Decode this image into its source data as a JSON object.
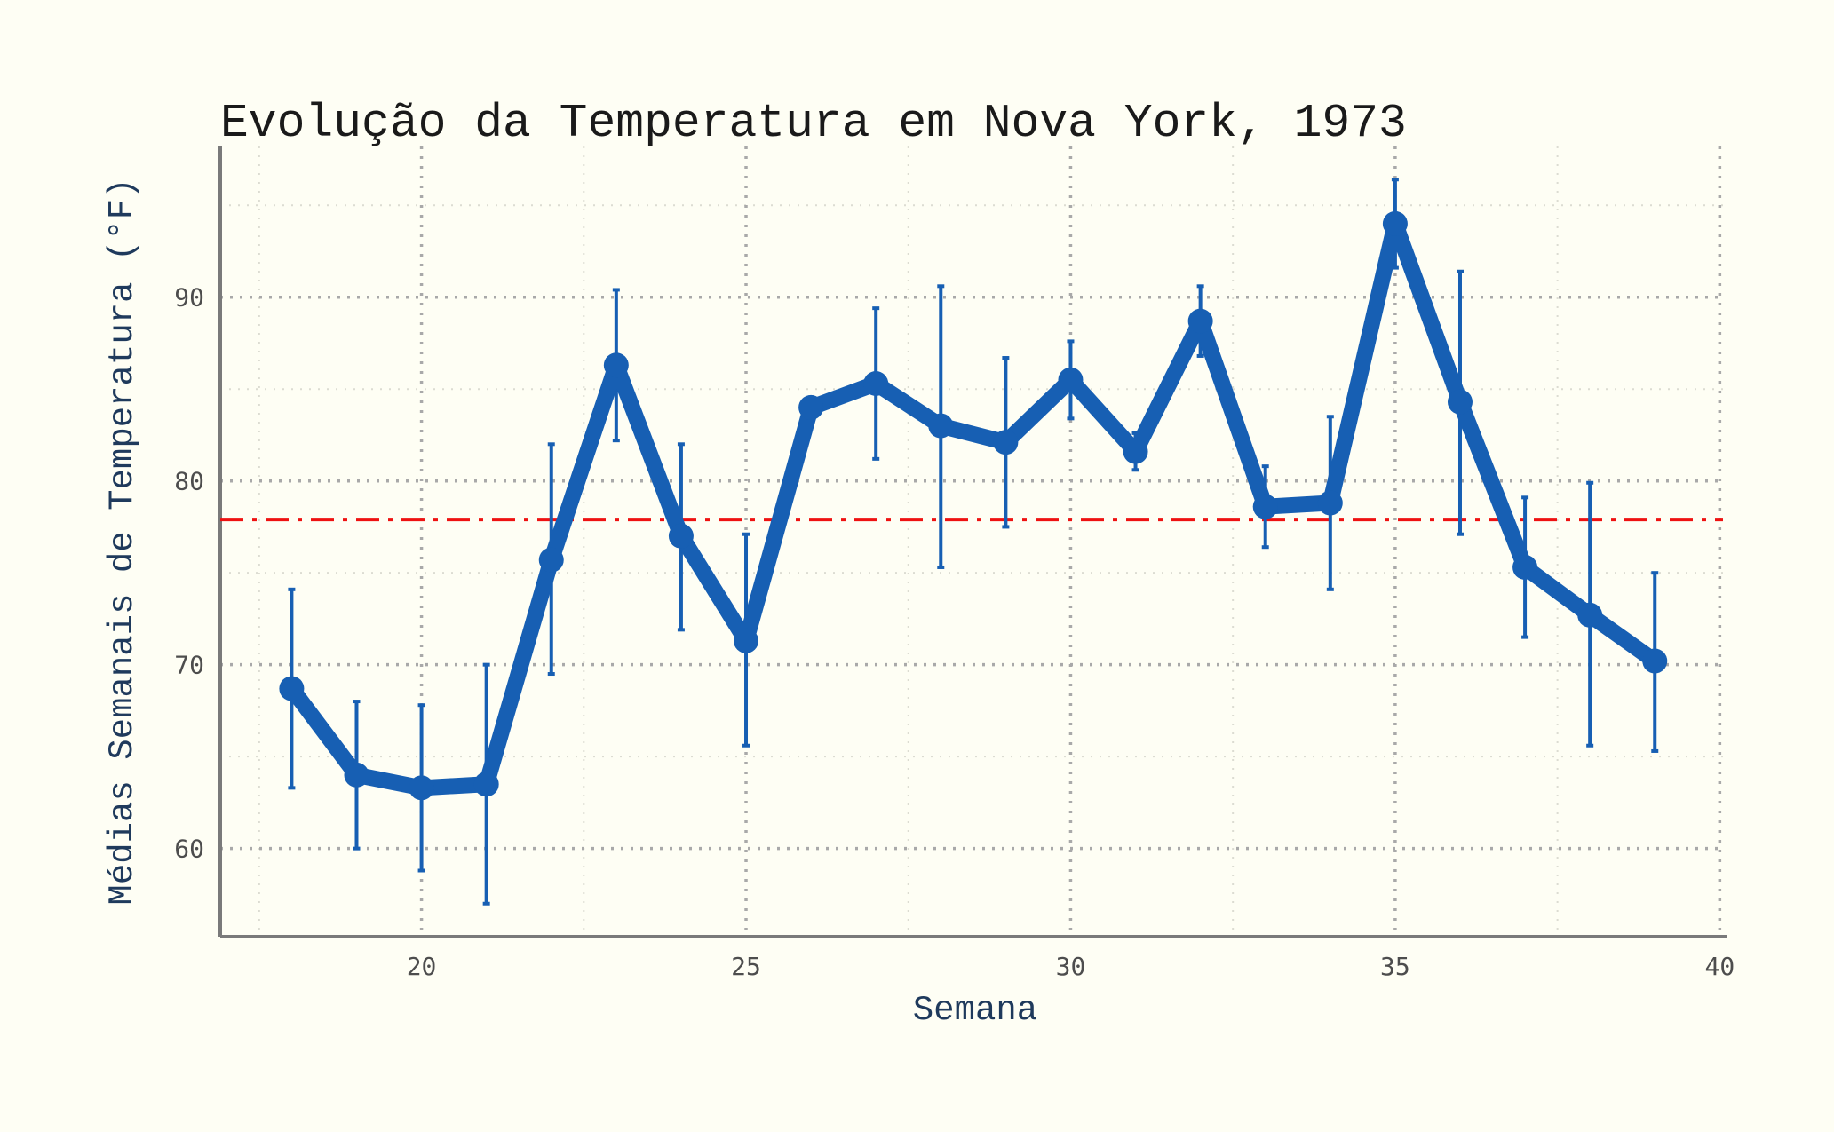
{
  "chart_data": {
    "type": "line",
    "title": "Evolução da Temperatura em Nova York, 1973",
    "xlabel": "Semana",
    "ylabel": "Médias Semanais de Temperatura (°F)",
    "xlim": [
      16.9,
      40.05
    ],
    "ylim": [
      55.2,
      98.2
    ],
    "xticks": [
      20,
      25,
      30,
      35,
      40
    ],
    "yticks": [
      60,
      70,
      80,
      90
    ],
    "grid": true,
    "series": [
      {
        "x": [
          18,
          19,
          20,
          21,
          22,
          23,
          24,
          25,
          26,
          27,
          28,
          29,
          30,
          31,
          32,
          33,
          34,
          35,
          36,
          37,
          38,
          39
        ],
        "y": [
          68.7,
          64.0,
          63.3,
          63.5,
          75.7,
          86.3,
          77.0,
          71.3,
          84.0,
          85.3,
          83.0,
          82.1,
          85.5,
          81.6,
          88.7,
          78.6,
          78.8,
          94.0,
          84.3,
          75.3,
          72.7,
          70.2
        ],
        "err_low": [
          63.3,
          60.0,
          58.8,
          57.0,
          69.5,
          82.2,
          71.9,
          65.6,
          84.0,
          81.2,
          75.3,
          77.5,
          83.4,
          80.6,
          86.8,
          76.4,
          74.1,
          91.6,
          77.1,
          71.5,
          65.6,
          65.3
        ],
        "err_high": [
          74.1,
          68.0,
          67.8,
          70.0,
          82.0,
          90.4,
          82.0,
          77.1,
          84.0,
          89.4,
          90.6,
          86.7,
          87.6,
          82.6,
          90.6,
          80.8,
          83.5,
          96.4,
          91.4,
          79.1,
          79.9,
          75.0
        ],
        "color": "#175fb3"
      }
    ],
    "reference_line": {
      "y": 77.9,
      "color": "#ee1111",
      "style": "dash-dot"
    }
  }
}
